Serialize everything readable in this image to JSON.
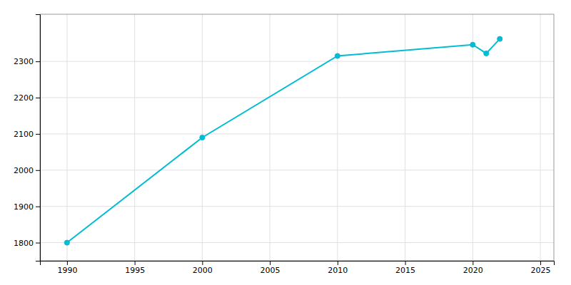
{
  "chart_data": {
    "type": "line",
    "x": [
      1990,
      2000,
      2010,
      2020,
      2021,
      2022
    ],
    "values": [
      1800,
      2090,
      2315,
      2346,
      2322,
      2362
    ],
    "color": "#00BCD4",
    "marker": "circle",
    "xlim": [
      1988,
      2026
    ],
    "ylim": [
      1750,
      2430
    ],
    "xticks": [
      1990,
      1995,
      2000,
      2005,
      2010,
      2015,
      2020,
      2025
    ],
    "yticks": [
      1800,
      1900,
      2000,
      2100,
      2200,
      2300
    ],
    "grid": true
  }
}
